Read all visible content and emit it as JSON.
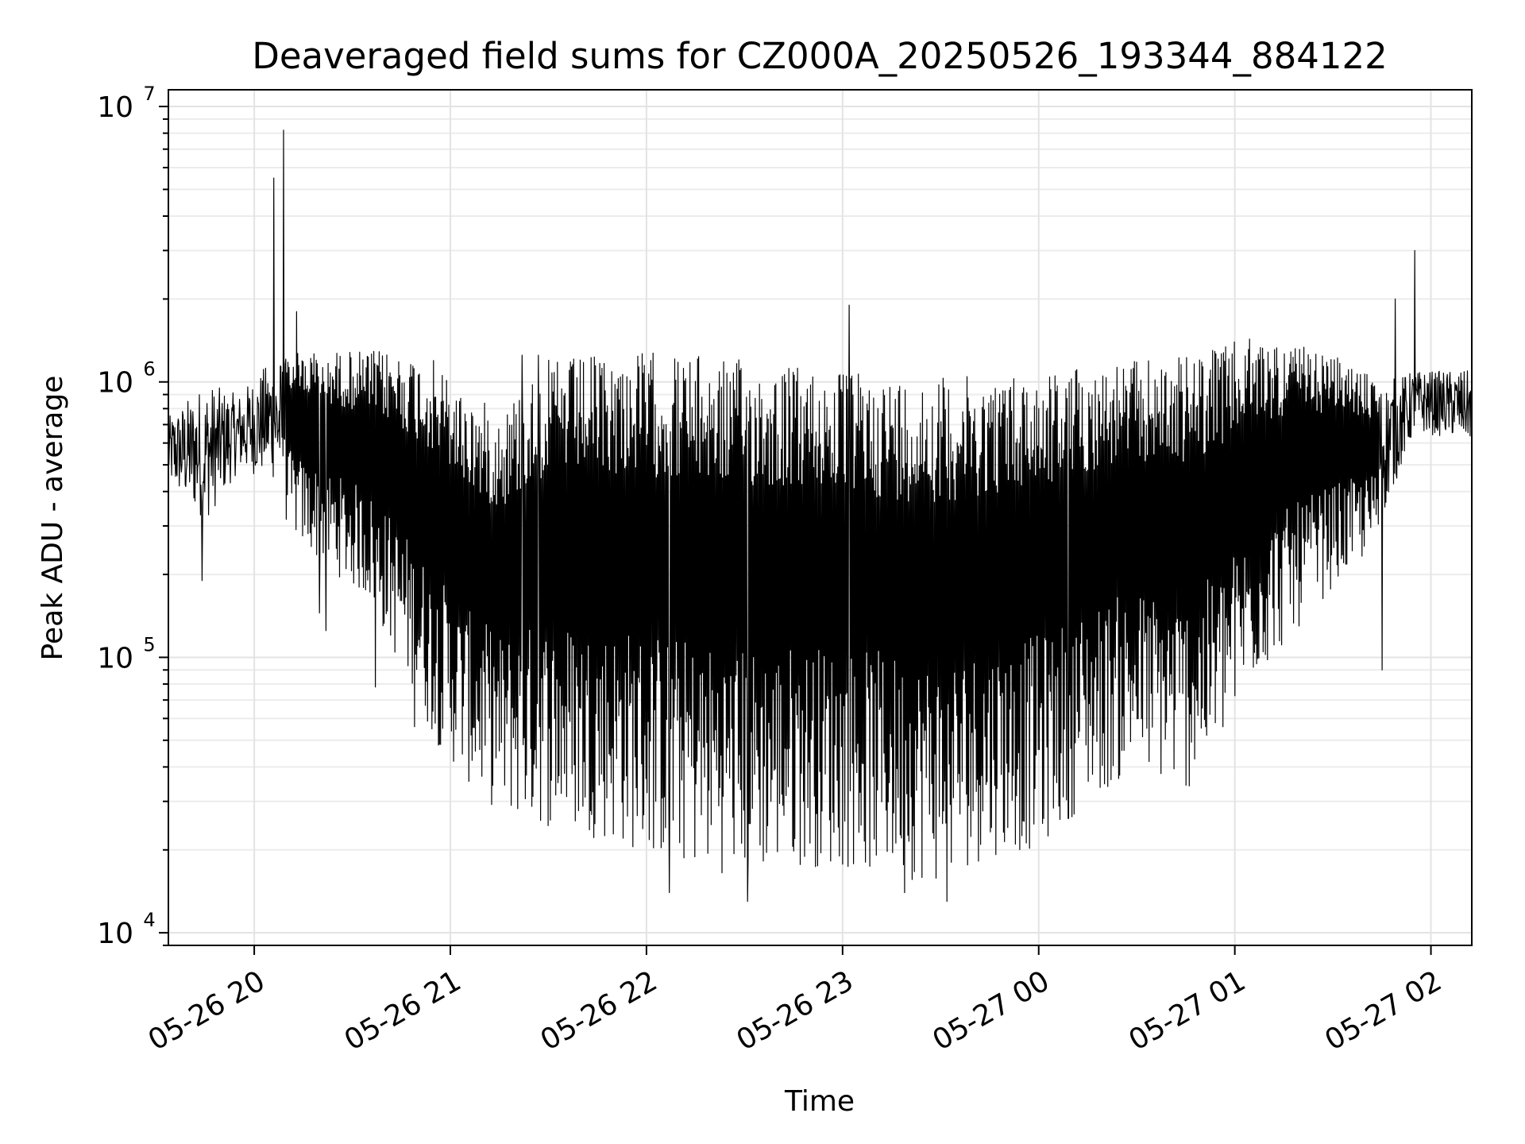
{
  "chart_data": {
    "type": "line",
    "title": "Deaveraged field sums for CZ000A_20250526_193344_884122",
    "xlabel": "Time",
    "ylabel": "Peak ADU - average",
    "x_type": "datetime",
    "xlim": [
      "2025-05-26 19:33:44",
      "2025-05-27 02:12:30"
    ],
    "ylim": [
      9000,
      11500000
    ],
    "yscale": "log",
    "x_ticks": [
      {
        "value": "2025-05-26 20:00",
        "label": "05-26 20"
      },
      {
        "value": "2025-05-26 21:00",
        "label": "05-26 21"
      },
      {
        "value": "2025-05-26 22:00",
        "label": "05-26 22"
      },
      {
        "value": "2025-05-26 23:00",
        "label": "05-26 23"
      },
      {
        "value": "2025-05-27 00:00",
        "label": "05-27 00"
      },
      {
        "value": "2025-05-27 01:00",
        "label": "05-27 01"
      },
      {
        "value": "2025-05-27 02:00",
        "label": "05-27 02"
      }
    ],
    "y_ticks": [
      {
        "value": 10000,
        "base": "10",
        "exp": "4"
      },
      {
        "value": 100000,
        "base": "10",
        "exp": "5"
      },
      {
        "value": 1000000,
        "base": "10",
        "exp": "6"
      },
      {
        "value": 10000000,
        "base": "10",
        "exp": "7"
      }
    ],
    "grid": true,
    "line_color": "#000000",
    "series": [
      {
        "envelope": [
          {
            "t": "2025-05-26 19:34",
            "high": 750000,
            "low": 380000
          },
          {
            "t": "2025-05-26 19:45",
            "high": 1000000,
            "low": 250000
          },
          {
            "t": "2025-05-26 19:55",
            "high": 900000,
            "low": 420000
          },
          {
            "t": "2025-05-26 20:05",
            "high": 1200000,
            "low": 380000
          },
          {
            "t": "2025-05-26 20:15",
            "high": 1300000,
            "low": 250000
          },
          {
            "t": "2025-05-26 20:25",
            "high": 1300000,
            "low": 200000
          },
          {
            "t": "2025-05-26 20:35",
            "high": 1300000,
            "low": 160000
          },
          {
            "t": "2025-05-26 20:45",
            "high": 1300000,
            "low": 90000
          },
          {
            "t": "2025-05-26 20:55",
            "high": 1200000,
            "low": 50000
          },
          {
            "t": "2025-05-26 21:05",
            "high": 900000,
            "low": 35000
          },
          {
            "t": "2025-05-26 21:15",
            "high": 800000,
            "low": 27000
          },
          {
            "t": "2025-05-26 21:30",
            "high": 1200000,
            "low": 24000
          },
          {
            "t": "2025-05-26 21:45",
            "high": 1250000,
            "low": 22000
          },
          {
            "t": "2025-05-26 22:00",
            "high": 1300000,
            "low": 19000
          },
          {
            "t": "2025-05-26 22:15",
            "high": 1250000,
            "low": 17000
          },
          {
            "t": "2025-05-26 22:30",
            "high": 1200000,
            "low": 16000
          },
          {
            "t": "2025-05-26 22:45",
            "high": 1150000,
            "low": 17500
          },
          {
            "t": "2025-05-26 23:00",
            "high": 1100000,
            "low": 17000
          },
          {
            "t": "2025-05-26 23:15",
            "high": 1050000,
            "low": 16000
          },
          {
            "t": "2025-05-26 23:30",
            "high": 1050000,
            "low": 15000
          },
          {
            "t": "2025-05-26 23:45",
            "high": 1050000,
            "low": 19000
          },
          {
            "t": "2025-05-27 00:00",
            "high": 1100000,
            "low": 20000
          },
          {
            "t": "2025-05-27 00:15",
            "high": 1150000,
            "low": 30000
          },
          {
            "t": "2025-05-27 00:30",
            "high": 1200000,
            "low": 38000
          },
          {
            "t": "2025-05-27 00:45",
            "high": 1250000,
            "low": 32000
          },
          {
            "t": "2025-05-27 00:55",
            "high": 1350000,
            "low": 45000
          },
          {
            "t": "2025-05-27 01:05",
            "high": 1450000,
            "low": 80000
          },
          {
            "t": "2025-05-27 01:15",
            "high": 1400000,
            "low": 110000
          },
          {
            "t": "2025-05-27 01:30",
            "high": 1250000,
            "low": 180000
          },
          {
            "t": "2025-05-27 01:45",
            "high": 1000000,
            "low": 260000
          },
          {
            "t": "2025-05-27 01:55",
            "high": 1100000,
            "low": 600000
          },
          {
            "t": "2025-05-27 02:12",
            "high": 1100000,
            "low": 550000
          }
        ],
        "spikes": [
          {
            "t": "2025-05-26 20:06",
            "value": 5500000
          },
          {
            "t": "2025-05-26 20:09",
            "value": 8200000
          },
          {
            "t": "2025-05-26 20:13",
            "value": 1800000
          },
          {
            "t": "2025-05-26 21:22",
            "value": 1250000
          },
          {
            "t": "2025-05-26 21:27",
            "value": 1250000
          },
          {
            "t": "2025-05-26 23:02",
            "value": 1900000
          },
          {
            "t": "2025-05-27 01:49",
            "value": 2000000
          },
          {
            "t": "2025-05-27 01:55",
            "value": 3000000
          }
        ],
        "dips": [
          {
            "t": "2025-05-26 19:44",
            "value": 190000
          },
          {
            "t": "2025-05-26 20:20",
            "value": 145000
          },
          {
            "t": "2025-05-26 20:22",
            "value": 125000
          },
          {
            "t": "2025-05-26 20:37",
            "value": 78000
          },
          {
            "t": "2025-05-26 20:49",
            "value": 56000
          },
          {
            "t": "2025-05-26 22:07",
            "value": 14000
          },
          {
            "t": "2025-05-26 22:31",
            "value": 13000
          },
          {
            "t": "2025-05-26 23:19",
            "value": 14000
          },
          {
            "t": "2025-05-26 23:32",
            "value": 13000
          },
          {
            "t": "2025-05-27 00:09",
            "value": 26000
          },
          {
            "t": "2025-05-27 01:45",
            "value": 90000
          }
        ]
      }
    ]
  }
}
